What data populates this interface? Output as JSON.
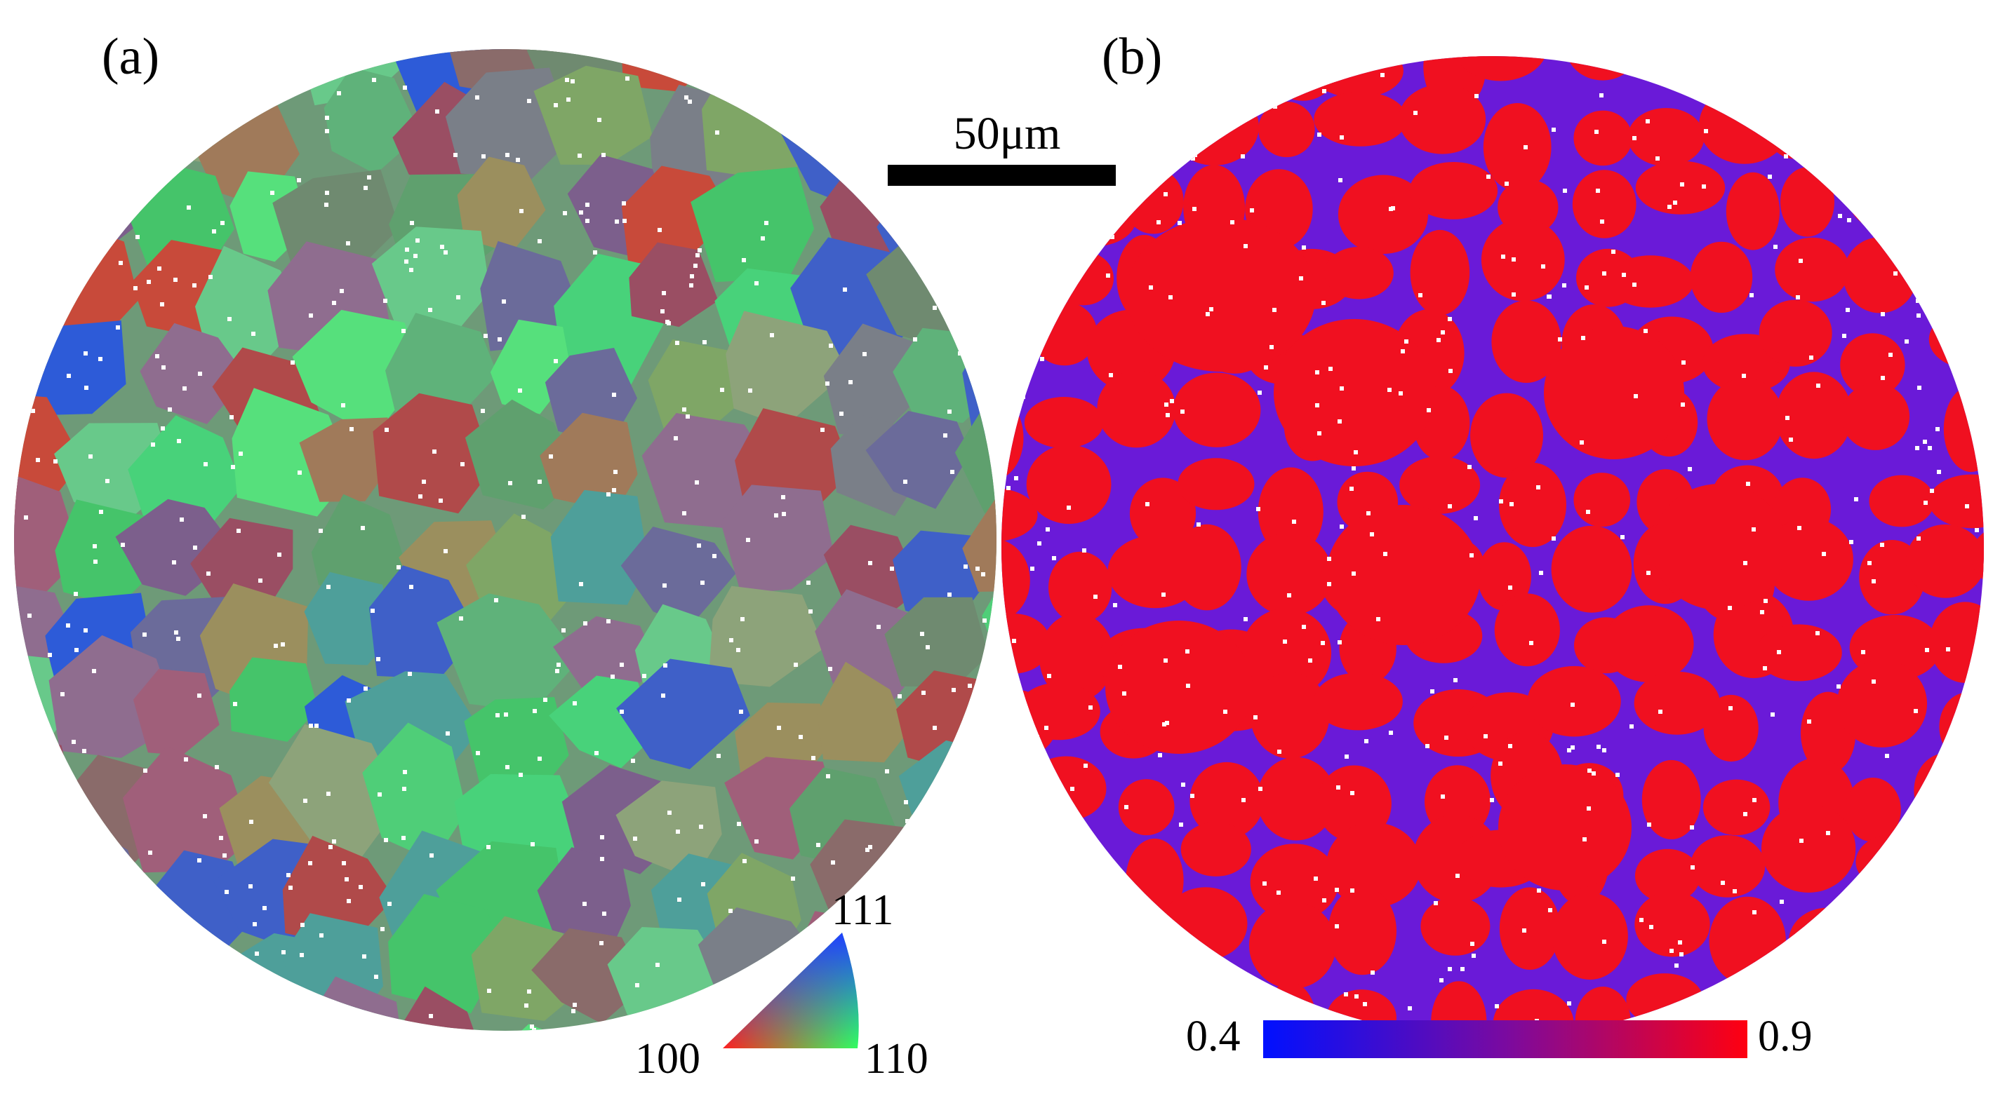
{
  "panel_a": {
    "label": "(a)",
    "grains": [
      {
        "color": "#5fa06e"
      },
      {
        "color": "#8a6b6a"
      },
      {
        "color": "#4fce78"
      },
      {
        "color": "#9a4e63"
      },
      {
        "color": "#6f8a70"
      },
      {
        "color": "#48d27a"
      },
      {
        "color": "#7c5f8c"
      },
      {
        "color": "#a07a5a"
      },
      {
        "color": "#3f60c8"
      },
      {
        "color": "#5fb27a"
      },
      {
        "color": "#b04a4a"
      },
      {
        "color": "#7fa666"
      },
      {
        "color": "#4e9f9a"
      },
      {
        "color": "#8f6d8f"
      },
      {
        "color": "#68c98a"
      },
      {
        "color": "#c84a3a"
      },
      {
        "color": "#2d5bd8"
      },
      {
        "color": "#7a7f88"
      },
      {
        "color": "#56e07c"
      },
      {
        "color": "#9b8f5e"
      },
      {
        "color": "#6b6b9a"
      },
      {
        "color": "#8da37a"
      },
      {
        "color": "#45c46a"
      },
      {
        "color": "#a05f7a"
      }
    ]
  },
  "panel_b": {
    "label": "(b)",
    "grain_color": "#f01020",
    "boundary_color": "#6a1ad8"
  },
  "scale_bar": {
    "label": "50μm"
  },
  "ipf_legend": {
    "corner_111": "111",
    "corner_100": "100",
    "corner_110": "110",
    "colors": {
      "c100": "#ff2020",
      "c110": "#30ff60",
      "c111": "#2040ff"
    }
  },
  "colorbar": {
    "min_label": "0.4",
    "max_label": "0.9",
    "min_color": "#0010ff",
    "max_color": "#ff0010"
  }
}
